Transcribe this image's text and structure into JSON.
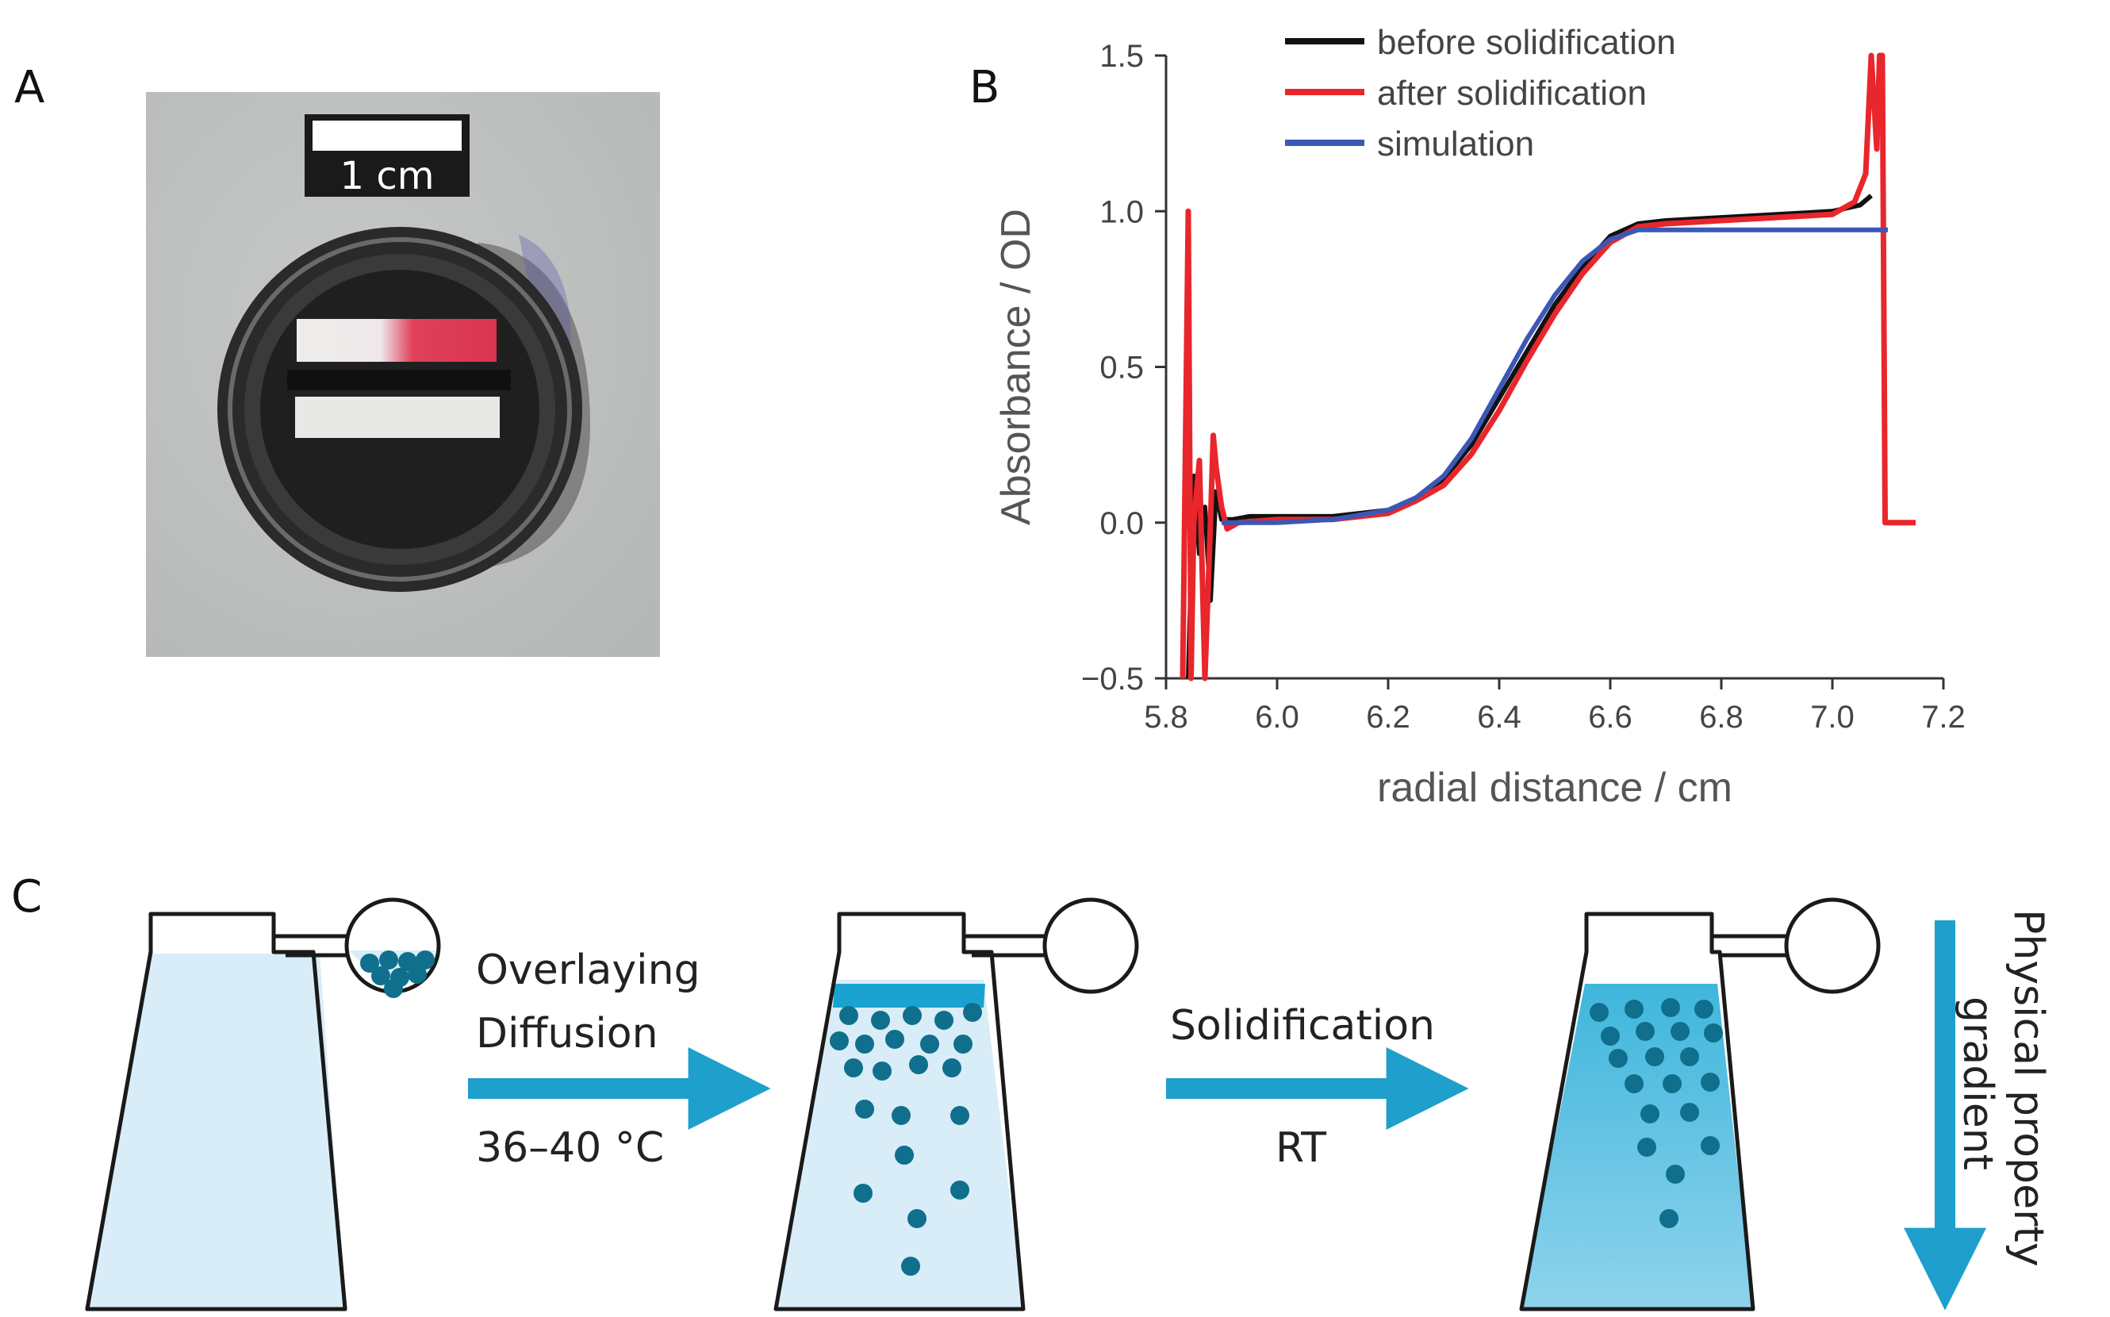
{
  "panels": {
    "a_label": "A",
    "b_label": "B",
    "c_label": "C"
  },
  "photo": {
    "scale_bar_text": "1 cm",
    "background_color": "#bdbfbe",
    "sample_color": "#e0405a"
  },
  "chart_data": {
    "type": "line",
    "xlabel": "radial distance / cm",
    "ylabel": "Absorbance / OD",
    "xlim": [
      5.8,
      7.2
    ],
    "ylim": [
      -0.5,
      1.5
    ],
    "x_ticks": [
      "5.8",
      "6.0",
      "6.2",
      "6.4",
      "6.6",
      "6.8",
      "7.0",
      "7.2"
    ],
    "y_ticks": [
      "−0.5",
      "0.0",
      "0.5",
      "1.0",
      "1.5"
    ],
    "legend_position": "top",
    "series": [
      {
        "name": "before solidification",
        "color": "#111111",
        "x": [
          5.84,
          5.85,
          5.86,
          5.87,
          5.88,
          5.89,
          5.9,
          5.92,
          5.95,
          6.0,
          6.1,
          6.2,
          6.25,
          6.3,
          6.35,
          6.4,
          6.45,
          6.5,
          6.55,
          6.6,
          6.65,
          6.7,
          6.8,
          6.9,
          7.0,
          7.05,
          7.07
        ],
        "y": [
          -0.5,
          0.15,
          -0.1,
          0.05,
          -0.25,
          0.1,
          0.01,
          0.01,
          0.02,
          0.02,
          0.02,
          0.04,
          0.08,
          0.14,
          0.25,
          0.4,
          0.55,
          0.7,
          0.82,
          0.92,
          0.96,
          0.97,
          0.98,
          0.99,
          1.0,
          1.02,
          1.05
        ]
      },
      {
        "name": "after solidification",
        "color": "#e8262b",
        "x": [
          5.83,
          5.84,
          5.845,
          5.85,
          5.86,
          5.87,
          5.88,
          5.885,
          5.89,
          5.9,
          5.91,
          5.93,
          6.0,
          6.1,
          6.2,
          6.25,
          6.3,
          6.35,
          6.4,
          6.45,
          6.5,
          6.55,
          6.6,
          6.65,
          6.7,
          6.8,
          6.9,
          7.0,
          7.04,
          7.06,
          7.07,
          7.08,
          7.085,
          7.09,
          7.095,
          7.1,
          7.15
        ],
        "y": [
          -0.5,
          1.0,
          -0.5,
          0.0,
          0.2,
          -0.5,
          0.0,
          0.28,
          0.18,
          0.05,
          -0.02,
          0.0,
          0.01,
          0.01,
          0.03,
          0.07,
          0.12,
          0.22,
          0.36,
          0.52,
          0.67,
          0.8,
          0.9,
          0.95,
          0.96,
          0.97,
          0.98,
          0.99,
          1.03,
          1.12,
          1.5,
          1.2,
          1.5,
          1.5,
          0.0,
          0.0,
          0.0
        ]
      },
      {
        "name": "simulation",
        "color": "#3a58b4",
        "x": [
          5.9,
          6.0,
          6.1,
          6.2,
          6.25,
          6.3,
          6.35,
          6.4,
          6.45,
          6.5,
          6.55,
          6.6,
          6.65,
          6.7,
          6.8,
          7.0,
          7.1
        ],
        "y": [
          0.0,
          0.0,
          0.01,
          0.04,
          0.08,
          0.15,
          0.27,
          0.43,
          0.59,
          0.73,
          0.84,
          0.91,
          0.94,
          0.94,
          0.94,
          0.94,
          0.94
        ]
      }
    ]
  },
  "schematic": {
    "step1_label_a": "Overlaying",
    "step1_label_b": "Diffusion",
    "step1_condition": "36–40 °C",
    "step2_label": "Solidification",
    "step2_condition": "RT",
    "gradient_label_a": "Physical property",
    "gradient_label_b": "gradient",
    "arrow_color": "#1e9fcc",
    "particle_color": "#0f6f8c",
    "liquid_color": "#d8edf7"
  }
}
